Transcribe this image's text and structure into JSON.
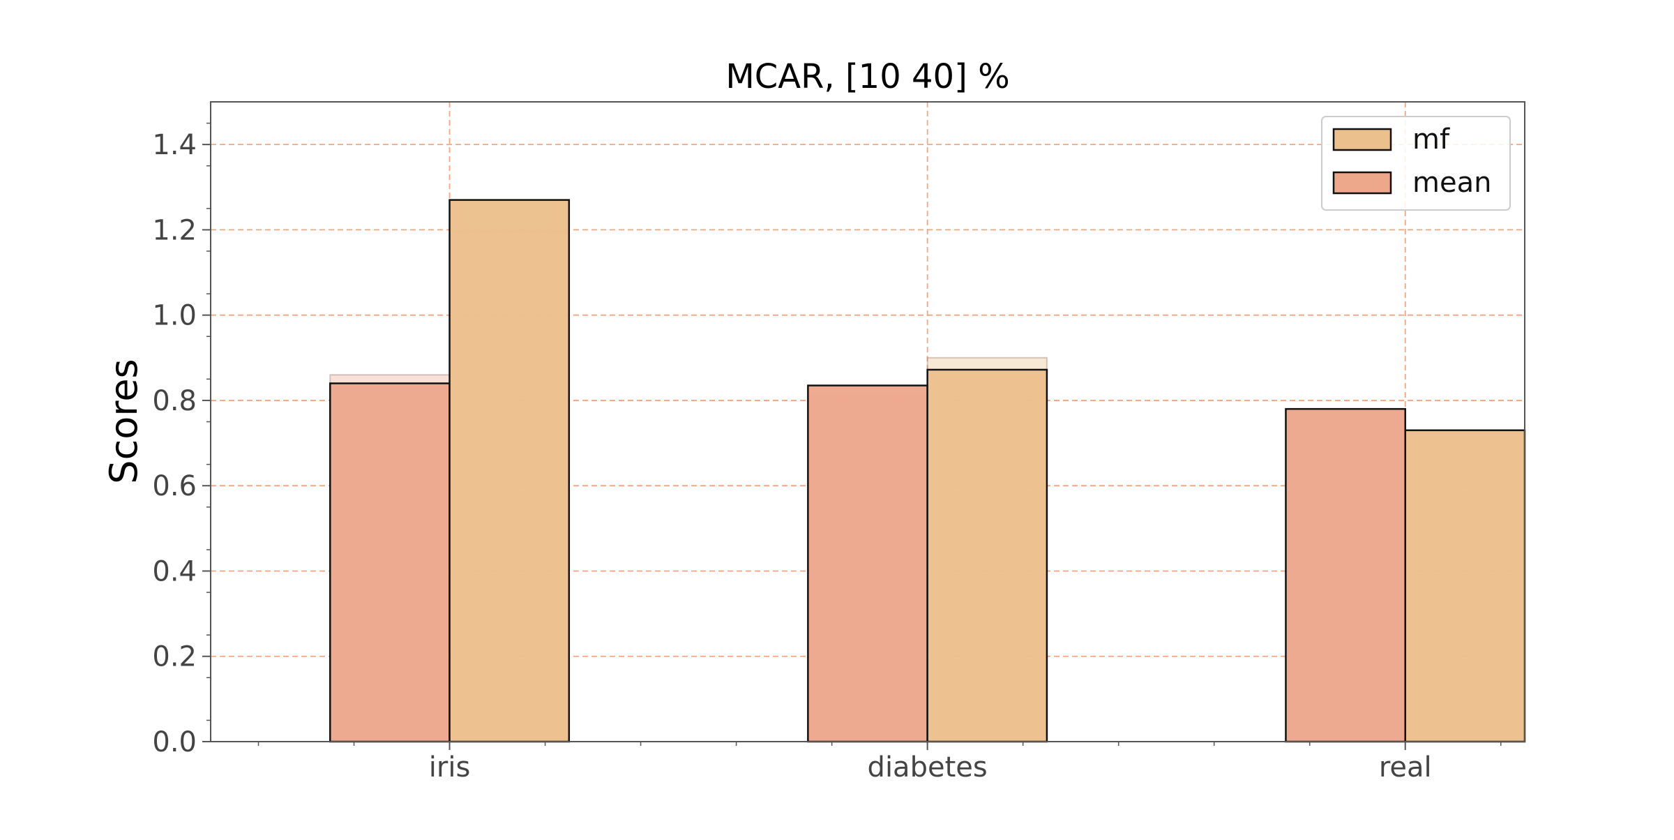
{
  "chart_data": {
    "type": "bar",
    "title": "MCAR, [10 40] %",
    "xlabel": "",
    "ylabel": "Scores",
    "categories": [
      "iris",
      "diabetes",
      "real"
    ],
    "series": [
      {
        "name": "mean",
        "values": [
          0.84,
          0.835,
          0.78
        ],
        "shadow_values": [
          0.86,
          0.81,
          0.78
        ],
        "color": "#eda88c"
      },
      {
        "name": "mf",
        "values": [
          1.27,
          0.872,
          0.73
        ],
        "shadow_values": [
          1.195,
          0.9,
          0.725
        ],
        "color": "#ecc08c"
      }
    ],
    "ylim": [
      0,
      1.5
    ],
    "yticks": [
      0.0,
      0.2,
      0.4,
      0.6,
      0.8,
      1.0,
      1.2,
      1.4
    ],
    "ytick_labels": [
      "0.0",
      "0.2",
      "0.4",
      "0.6",
      "0.8",
      "1.0",
      "1.2",
      "1.4"
    ],
    "grid": true,
    "grid_color": "#f4a582",
    "legend": {
      "placement": "top-right",
      "entries": [
        {
          "label": "mf",
          "color": "#ecc08c"
        },
        {
          "label": "mean",
          "color": "#eda88c"
        }
      ]
    }
  }
}
